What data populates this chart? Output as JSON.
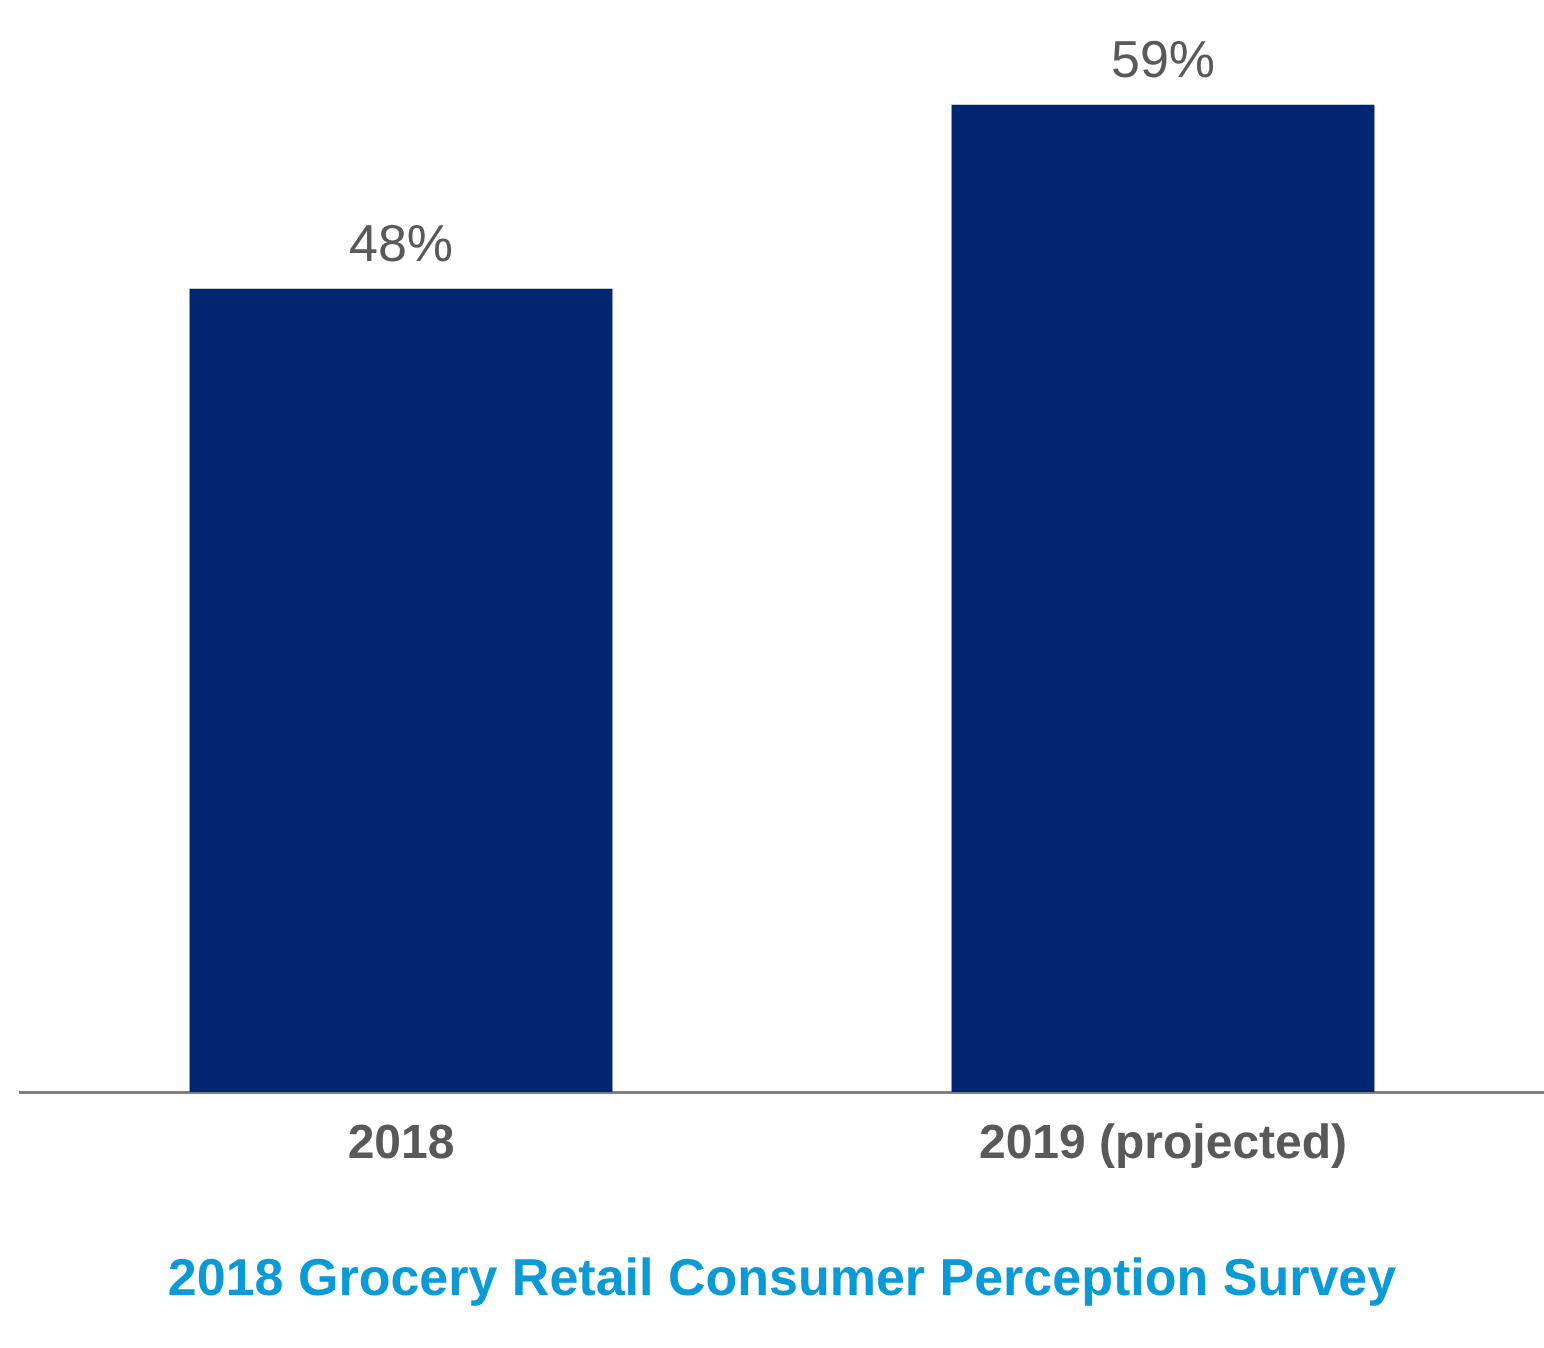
{
  "chart_data": {
    "type": "bar",
    "categories": [
      "2018",
      "2019 (projected)"
    ],
    "values": [
      48,
      59
    ],
    "value_labels": [
      "48%",
      "59%"
    ],
    "color": "#002672",
    "xlabel": "2018 Grocery Retail Consumer Perception Survey",
    "grid": false,
    "legend": false,
    "tick_labels": "x"
  }
}
